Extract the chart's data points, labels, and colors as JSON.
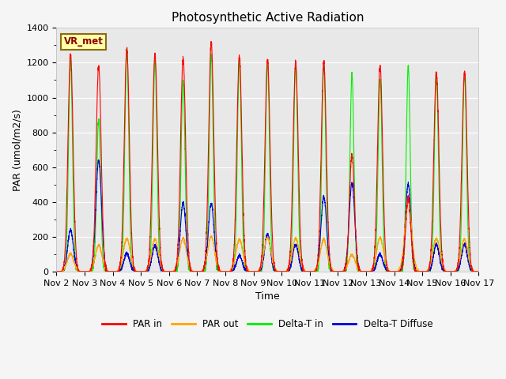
{
  "title": "Photosynthetic Active Radiation",
  "ylabel": "PAR (umol/m2/s)",
  "xlabel": "Time",
  "ylim": [
    0,
    1400
  ],
  "label_box_text": "VR_met",
  "fig_bg_color": "#f5f5f5",
  "plot_bg_color": "#e8e8e8",
  "series": {
    "par_in": {
      "label": "PAR in",
      "color": "#ff0000"
    },
    "par_out": {
      "label": "PAR out",
      "color": "#ffa500"
    },
    "delta_t_in": {
      "label": "Delta-T in",
      "color": "#00ee00"
    },
    "delta_t_diffuse": {
      "label": "Delta-T Diffuse",
      "color": "#0000dd"
    }
  },
  "x_tick_labels": [
    "Nov 2",
    "Nov 3",
    "Nov 4",
    "Nov 5",
    "Nov 6",
    "Nov 7",
    "Nov 8",
    "Nov 9",
    "Nov 10",
    "Nov 11",
    "Nov 12",
    "Nov 13",
    "Nov 14",
    "Nov 15",
    "Nov 16",
    "Nov 17"
  ],
  "day_peaks": {
    "par_in": [
      1250,
      1180,
      1280,
      1250,
      1230,
      1320,
      1240,
      1215,
      1200,
      1200,
      670,
      1180,
      420,
      1150,
      1150
    ],
    "par_out": [
      100,
      150,
      190,
      185,
      190,
      200,
      185,
      195,
      190,
      185,
      95,
      195,
      415,
      190,
      185
    ],
    "delta_t_in": [
      1220,
      870,
      1270,
      1220,
      1095,
      1250,
      1215,
      1200,
      1200,
      1185,
      1130,
      1100,
      1180,
      1130,
      1130
    ],
    "delta_t_diffuse": [
      240,
      640,
      105,
      150,
      395,
      390,
      90,
      215,
      155,
      430,
      510,
      100,
      500,
      155,
      155
    ]
  },
  "day_offsets": [
    0.5,
    0.5,
    0.5,
    0.5,
    0.5,
    0.5,
    0.5,
    0.5,
    0.5,
    0.5,
    0.5,
    0.5,
    0.5,
    0.5,
    0.5
  ],
  "widths": {
    "par_in": 0.09,
    "par_out": 0.12,
    "delta_t_in": 0.07,
    "delta_t_diffuse": 0.1
  }
}
